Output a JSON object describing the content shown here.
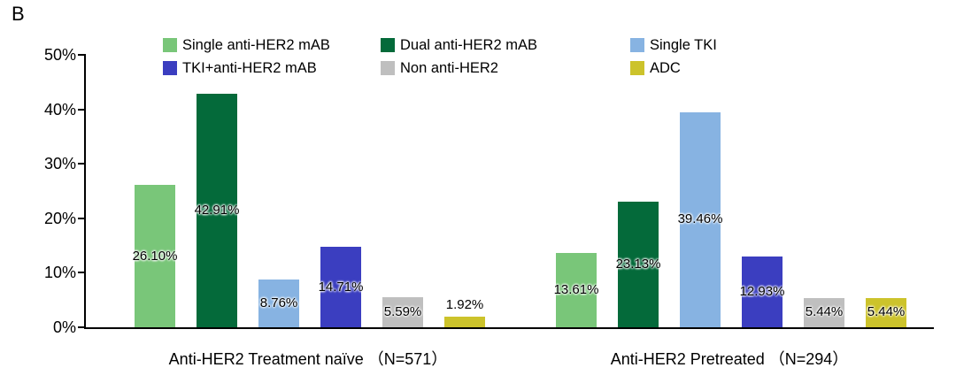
{
  "panel_label": "B",
  "chart_data": {
    "type": "bar",
    "title": "",
    "xlabel": "",
    "ylabel": "",
    "ylim": [
      0,
      50
    ],
    "grid": false,
    "legend_position": "top",
    "yticks": [
      {
        "value": 0,
        "label": "0%"
      },
      {
        "value": 10,
        "label": "10%"
      },
      {
        "value": 20,
        "label": "20%"
      },
      {
        "value": 30,
        "label": "30%"
      },
      {
        "value": 40,
        "label": "40%"
      },
      {
        "value": 50,
        "label": "50%"
      }
    ],
    "categories": [
      "Anti-HER2 Treatment naïve （N=571）",
      "Anti-HER2 Pretreated （N=294）"
    ],
    "series": [
      {
        "name": "Single anti-HER2 mAB",
        "color": "#79C679",
        "values": [
          26.1,
          13.61
        ],
        "labels": [
          "26.10%",
          "13.61%"
        ]
      },
      {
        "name": "Dual anti-HER2 mAB",
        "color": "#046A3A",
        "values": [
          42.91,
          23.13
        ],
        "labels": [
          "42.91%",
          "23.13%"
        ]
      },
      {
        "name": "Single TKI",
        "color": "#87B3E2",
        "values": [
          8.76,
          39.46
        ],
        "labels": [
          "8.76%",
          "39.46%"
        ]
      },
      {
        "name": "TKI+anti-HER2 mAB",
        "color": "#3B3EC0",
        "values": [
          14.71,
          12.93
        ],
        "labels": [
          "14.71%",
          "12.93%"
        ]
      },
      {
        "name": "Non anti-HER2",
        "color": "#BFBFBF",
        "values": [
          5.59,
          5.44
        ],
        "labels": [
          "5.59%",
          "5.44%"
        ]
      },
      {
        "name": "ADC",
        "color": "#CCC32B",
        "values": [
          1.92,
          5.44
        ],
        "labels": [
          "1.92%",
          "5.44%"
        ]
      }
    ]
  }
}
